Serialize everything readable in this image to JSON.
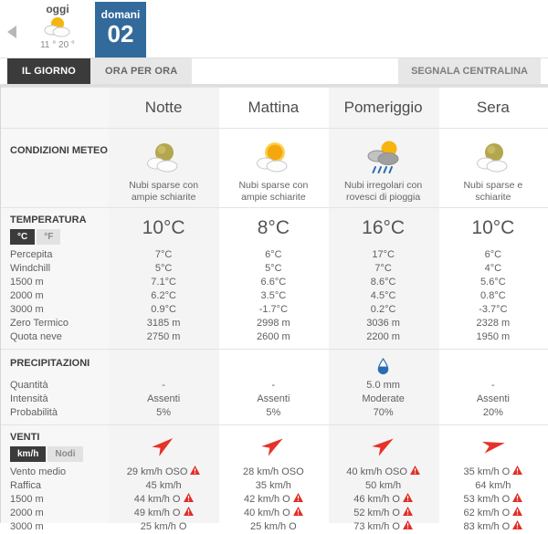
{
  "day_nav": {
    "prev_label": "oggi",
    "prev_icon": "sun-clouds-small",
    "prev_temps": "11 ° 20 °",
    "active_day_label": "domani",
    "active_day_number": "02"
  },
  "tabs": [
    {
      "label": "IL GIORNO",
      "active": true
    },
    {
      "label": "ORA PER ORA",
      "active": false
    }
  ],
  "report_button_label": "SEGNALA CENTRALINA",
  "columns": [
    "Notte",
    "Mattina",
    "Pomeriggio",
    "Sera"
  ],
  "conditions": {
    "section_label": "CONDIZIONI METEO",
    "cells": [
      {
        "icon": "moon-clouds",
        "desc": "Nubi sparse con ampie schiarite"
      },
      {
        "icon": "sun-clouds",
        "desc": "Nubi sparse con ampie schiarite"
      },
      {
        "icon": "rain-showers",
        "desc": "Nubi irregolari con rovesci di pioggia"
      },
      {
        "icon": "moon-clouds",
        "desc": "Nubi sparse e schiarite"
      }
    ]
  },
  "temperature": {
    "section_label": "TEMPERATURA",
    "unit_toggle": [
      {
        "label": "°C",
        "active": true
      },
      {
        "label": "°F",
        "active": false
      }
    ],
    "main": [
      "10°C",
      "8°C",
      "16°C",
      "10°C"
    ],
    "rows": [
      {
        "label": "Percepita",
        "values": [
          "7°C",
          "6°C",
          "17°C",
          "6°C"
        ]
      },
      {
        "label": "Windchill",
        "values": [
          "5°C",
          "5°C",
          "7°C",
          "4°C"
        ]
      },
      {
        "label": "1500 m",
        "values": [
          "7.1°C",
          "6.6°C",
          "8.6°C",
          "5.6°C"
        ]
      },
      {
        "label": "2000 m",
        "values": [
          "6.2°C",
          "3.5°C",
          "4.5°C",
          "0.8°C"
        ]
      },
      {
        "label": "3000 m",
        "values": [
          "0.9°C",
          "-1.7°C",
          "0.2°C",
          "-3.7°C"
        ]
      },
      {
        "label": "Zero Termico",
        "values": [
          "3185 m",
          "2998 m",
          "3036 m",
          "2328 m"
        ]
      },
      {
        "label": "Quota neve",
        "values": [
          "2750 m",
          "2600 m",
          "2200 m",
          "1950 m"
        ]
      }
    ]
  },
  "precipitation": {
    "section_label": "PRECIPITAZIONI",
    "icons": [
      null,
      null,
      "droplet",
      null
    ],
    "rows": [
      {
        "label": "Quantità",
        "values": [
          "-",
          "-",
          "5.0 mm",
          "-"
        ]
      },
      {
        "label": "Intensità",
        "values": [
          "Assenti",
          "Assenti",
          "Moderate",
          "Assenti"
        ]
      },
      {
        "label": "Probabilità",
        "values": [
          "5%",
          "5%",
          "70%",
          "20%"
        ]
      }
    ]
  },
  "wind": {
    "section_label": "VENTI",
    "unit_toggle": [
      {
        "label": "km/h",
        "active": true
      },
      {
        "label": "Nodi",
        "active": false
      }
    ],
    "arrows": [
      {
        "rotation": -38
      },
      {
        "rotation": -35
      },
      {
        "rotation": -35
      },
      {
        "rotation": -12
      }
    ],
    "rows": [
      {
        "label": "Vento medio",
        "values": [
          {
            "text": "29 km/h OSO",
            "warn": true
          },
          {
            "text": "28 km/h OSO",
            "warn": false
          },
          {
            "text": "40 km/h OSO",
            "warn": true
          },
          {
            "text": "35 km/h O",
            "warn": true
          }
        ]
      },
      {
        "label": "Raffica",
        "values": [
          {
            "text": "45 km/h",
            "warn": false
          },
          {
            "text": "35 km/h",
            "warn": false
          },
          {
            "text": "50 km/h",
            "warn": false
          },
          {
            "text": "64 km/h",
            "warn": false
          }
        ]
      },
      {
        "label": "1500 m",
        "values": [
          {
            "text": "44 km/h O",
            "warn": true
          },
          {
            "text": "42 km/h O",
            "warn": true
          },
          {
            "text": "46 km/h O",
            "warn": true
          },
          {
            "text": "53 km/h O",
            "warn": true
          }
        ]
      },
      {
        "label": "2000 m",
        "values": [
          {
            "text": "49 km/h O",
            "warn": true
          },
          {
            "text": "40 km/h O",
            "warn": true
          },
          {
            "text": "52 km/h O",
            "warn": true
          },
          {
            "text": "62 km/h O",
            "warn": true
          }
        ]
      },
      {
        "label": "3000 m",
        "values": [
          {
            "text": "25 km/h O",
            "warn": false
          },
          {
            "text": "25 km/h O",
            "warn": false
          },
          {
            "text": "73 km/h O",
            "warn": true
          },
          {
            "text": "83 km/h O",
            "warn": true
          }
        ]
      }
    ]
  },
  "colors": {
    "accent_blue": "#336a9c",
    "dark_tab": "#3b3b3b",
    "alert_red": "#e22d26",
    "arrow_red": "#e6332a",
    "rain_blue": "#2a6cb0"
  }
}
